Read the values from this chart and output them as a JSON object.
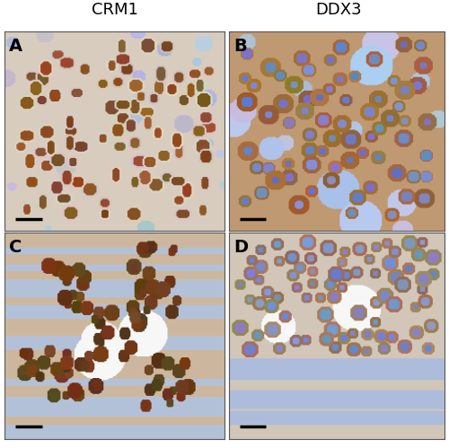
{
  "title_left": "CRM1",
  "title_right": "DDX3",
  "labels": [
    "A",
    "B",
    "C",
    "D"
  ],
  "figure_bg": "#ffffff",
  "label_fontsize": 14,
  "title_fontsize": 13,
  "scale_bar_color": "#000000"
}
